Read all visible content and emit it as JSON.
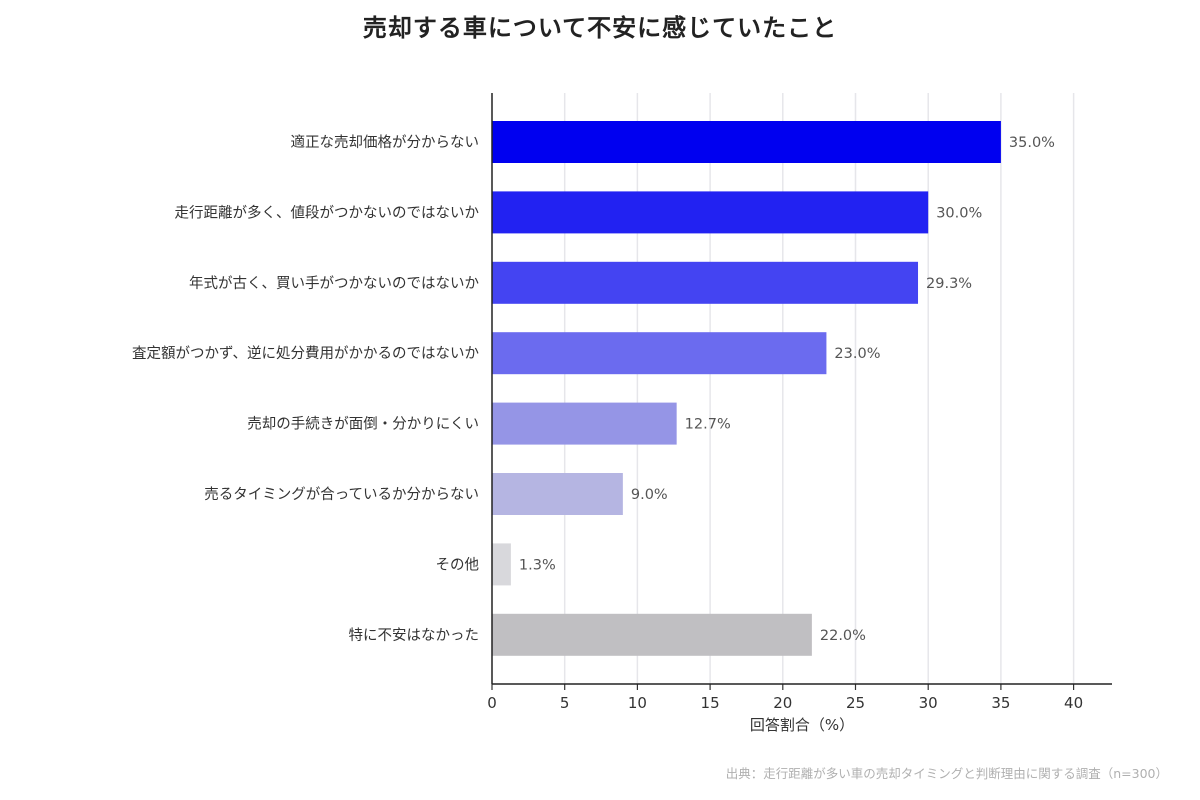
{
  "chart_data": {
    "type": "bar",
    "orientation": "horizontal",
    "title": "売却する車について不安に感じていたこと",
    "xlabel": "回答割合（%）",
    "ylabel": "",
    "xlim": [
      0,
      42.7
    ],
    "xticks": [
      0,
      5,
      10,
      15,
      20,
      25,
      30,
      35,
      40
    ],
    "grid": "vertical",
    "categories": [
      "適正な売却価格が分からない",
      "走行距離が多く、値段がつかないのではないか",
      "年式が古く、買い手がつかないのではないか",
      "査定額がつかず、逆に処分費用がかかるのではないか",
      "売却の手続きが面倒・分かりにくい",
      "売るタイミングが合っているか分からない",
      "その他",
      "特に不安はなかった"
    ],
    "values": [
      35.0,
      30.0,
      29.3,
      23.0,
      12.7,
      9.0,
      1.3,
      22.0
    ],
    "value_labels": [
      "35.0%",
      "30.0%",
      "29.3%",
      "23.0%",
      "12.7%",
      "9.0%",
      "1.3%",
      "22.0%"
    ],
    "colors": [
      "#0000f0",
      "#2222f2",
      "#4444f2",
      "#6b6bef",
      "#9595e6",
      "#b5b5e2",
      "#d8d8dc",
      "#c0bfc2"
    ]
  },
  "source": "出典：走行距離が多い車の売却タイミングと判断理由に関する調査（n=300）"
}
